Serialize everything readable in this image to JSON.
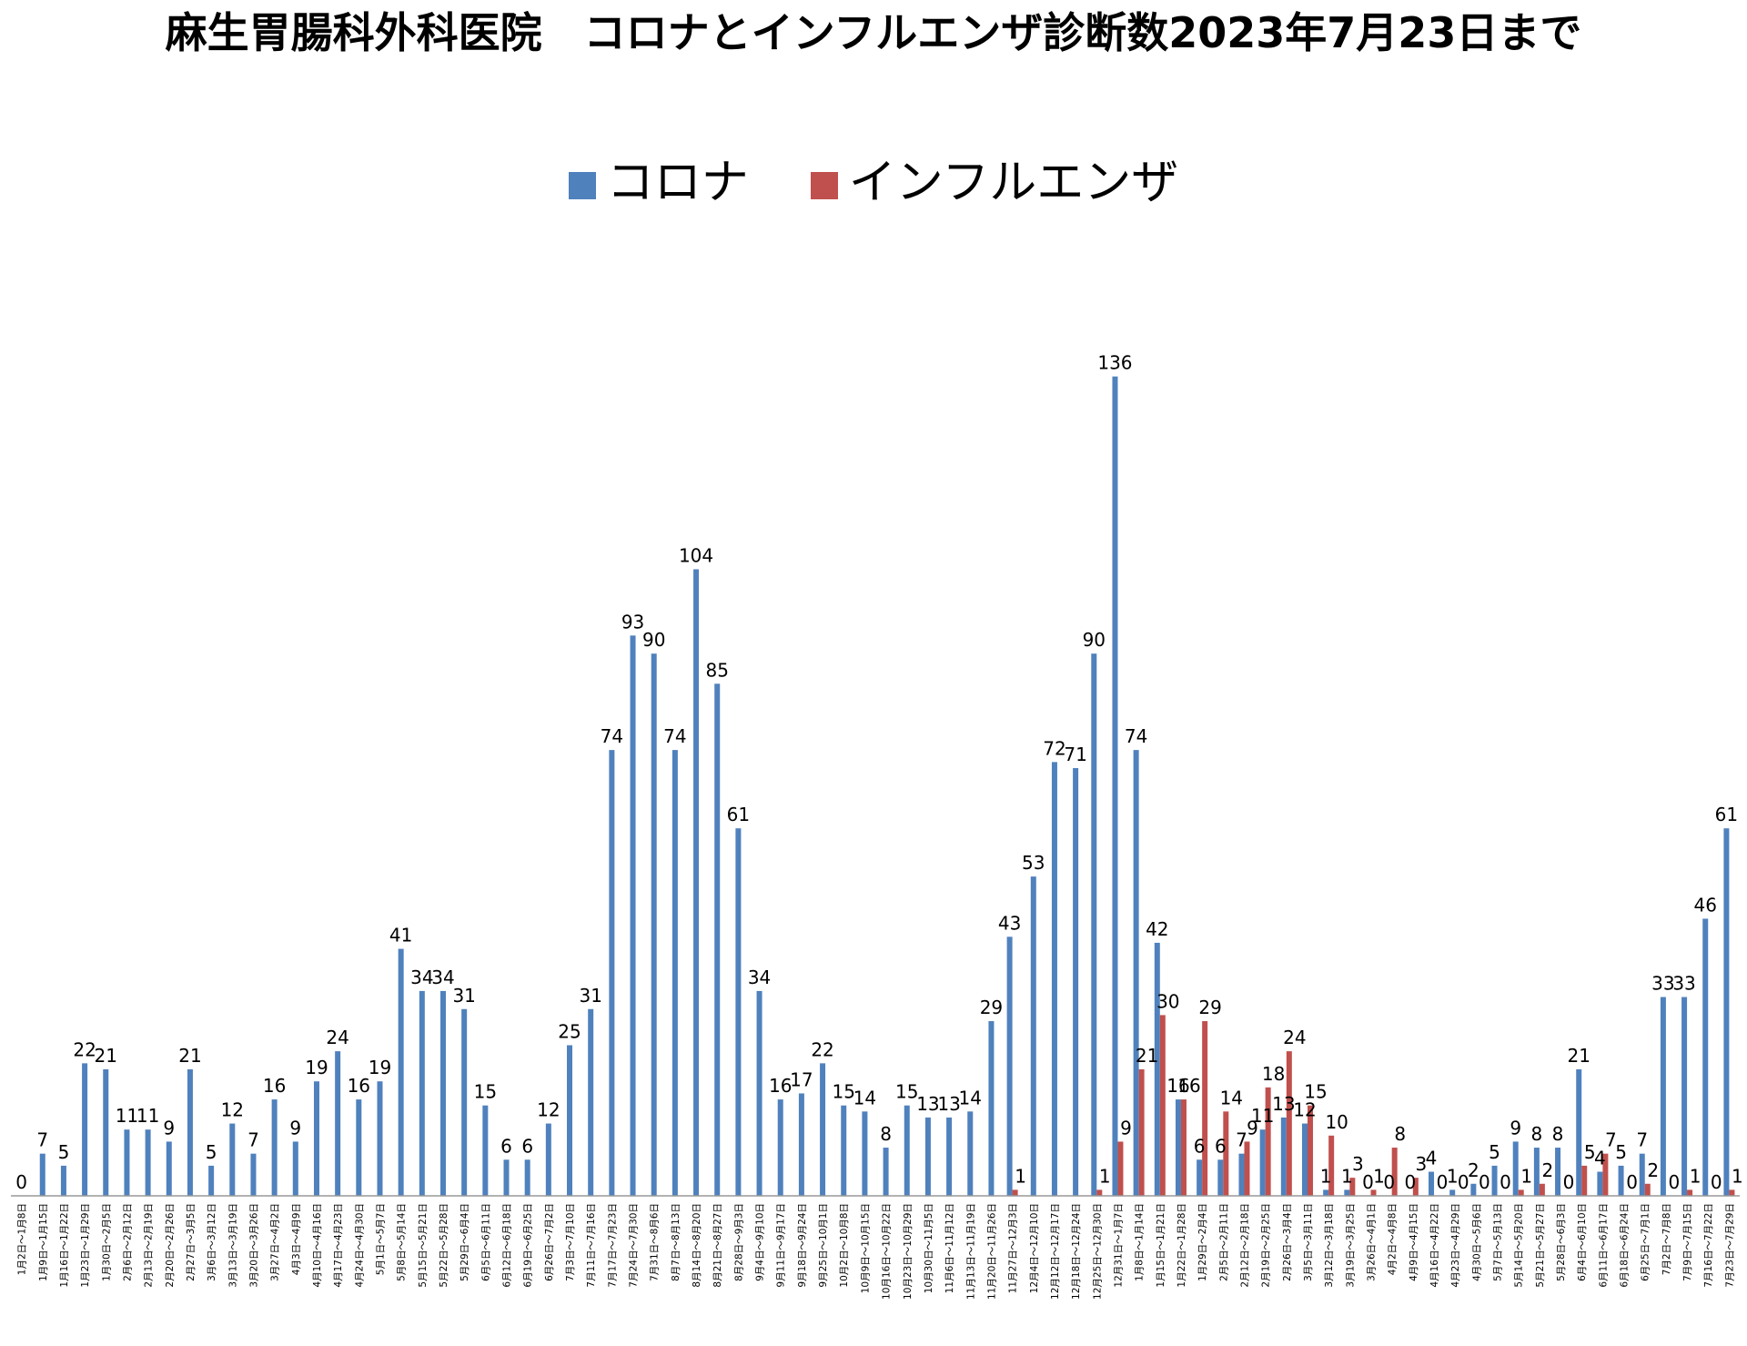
{
  "title": "麻生胃腸科外科医院　コロナとインフルエンザ診断数2023年7月23日まで",
  "legend": [
    {
      "name": "コロナ",
      "color": "#4F81BD"
    },
    {
      "name": "インフルエンザ",
      "color": "#C0504D"
    }
  ],
  "chart_data": {
    "type": "bar",
    "title": "麻生胃腸科外科医院　コロナとインフルエンザ診断数2023年7月23日まで",
    "xlabel": "",
    "ylabel": "",
    "ylim": [
      0,
      140
    ],
    "grid": false,
    "legend_position": "top",
    "categories": [
      "1月2日～1月8日",
      "1月9日～1月15日",
      "1月16日～1月22日",
      "1月23日～1月29日",
      "1月30日～2月5日",
      "2月6日～2月12日",
      "2月13日～2月19日",
      "2月20日～2月26日",
      "2月27日～3月5日",
      "3月6日～3月12日",
      "3月13日～3月19日",
      "3月20日～3月26日",
      "3月27日～4月2日",
      "4月3日～4月9日",
      "4月10日～4月16日",
      "4月17日～4月23日",
      "4月24日～4月30日",
      "5月1日～5月7日",
      "5月8日～5月14日",
      "5月15日～5月21日",
      "5月22日～5月28日",
      "5月29日～6月4日",
      "6月5日～6月11日",
      "6月12日～6月18日",
      "6月19日～6月25日",
      "6月26日～7月2日",
      "7月3日～7月10日",
      "7月11日～7月16日",
      "7月17日～7月23日",
      "7月24日～7月30日",
      "7月31日～8月6日",
      "8月7日～8月13日",
      "8月14日～8月20日",
      "8月21日～8月27日",
      "8月28日～9月3日",
      "9月4日～9月10日",
      "9月11日～9月17日",
      "9月18日～9月24日",
      "9月25日～10月1日",
      "10月2日～10月8日",
      "10月9日～10月15日",
      "10月16日～10月22日",
      "10月23日～10月29日",
      "10月30日～11月5日",
      "11月6日～11月12日",
      "11月13日～11月19日",
      "11月20日～11月26日",
      "11月27日～12月3日",
      "12月4日～12月10日",
      "12月12日～12月17日",
      "12月18日～12月24日",
      "12月25日～12月30日",
      "12月31日～1月7日",
      "1月8日～1月14日",
      "1月15日～1月21日",
      "1月22日～1月28日",
      "1月29日～2月4日",
      "2月5日～2月11日",
      "2月12日～2月18日",
      "2月19日～2月25日",
      "2月26日～3月4日",
      "3月5日～3月11日",
      "3月12日～3月18日",
      "3月19日～3月25日",
      "3月26日～4月1日",
      "4月2日～4月8日",
      "4月9日～4月15日",
      "4月16日～4月22日",
      "4月23日～4月29日",
      "4月30日～5月6日",
      "5月7日～5月13日",
      "5月14日～5月20日",
      "5月21日～5月27日",
      "5月28日～6月3日",
      "6月4日～6月10日",
      "6月11日～6月17日",
      "6月18日～6月24日",
      "6月25日～7月1日",
      "7月2日～7月8日",
      "7月9日～7月15日",
      "7月16日～7月22日",
      "7月23日～7月29日"
    ],
    "series": [
      {
        "name": "コロナ",
        "color": "#4F81BD",
        "values": [
          0,
          7,
          5,
          22,
          21,
          11,
          11,
          9,
          21,
          5,
          12,
          7,
          16,
          9,
          19,
          24,
          16,
          19,
          41,
          34,
          34,
          31,
          15,
          6,
          6,
          12,
          25,
          31,
          74,
          93,
          90,
          74,
          104,
          85,
          61,
          34,
          16,
          17,
          22,
          15,
          14,
          8,
          15,
          13,
          13,
          14,
          29,
          43,
          53,
          72,
          71,
          90,
          136,
          74,
          42,
          16,
          6,
          6,
          7,
          11,
          13,
          12,
          1,
          1,
          0,
          0,
          0,
          4,
          1,
          2,
          5,
          9,
          8,
          8,
          21,
          4,
          5,
          7,
          33,
          33,
          46,
          61
        ]
      },
      {
        "name": "インフルエンザ",
        "color": "#C0504D",
        "values": [
          null,
          null,
          null,
          null,
          null,
          null,
          null,
          null,
          null,
          null,
          null,
          null,
          null,
          null,
          null,
          null,
          null,
          null,
          null,
          null,
          null,
          null,
          null,
          null,
          null,
          null,
          null,
          null,
          null,
          null,
          null,
          null,
          null,
          null,
          null,
          null,
          null,
          null,
          null,
          null,
          null,
          null,
          null,
          null,
          null,
          null,
          null,
          1,
          null,
          null,
          null,
          1,
          9,
          21,
          30,
          16,
          29,
          14,
          9,
          18,
          24,
          15,
          10,
          3,
          1,
          8,
          3,
          0,
          0,
          0,
          0,
          1,
          2,
          0,
          5,
          7,
          0,
          2,
          0,
          1,
          0,
          1
        ]
      }
    ]
  }
}
